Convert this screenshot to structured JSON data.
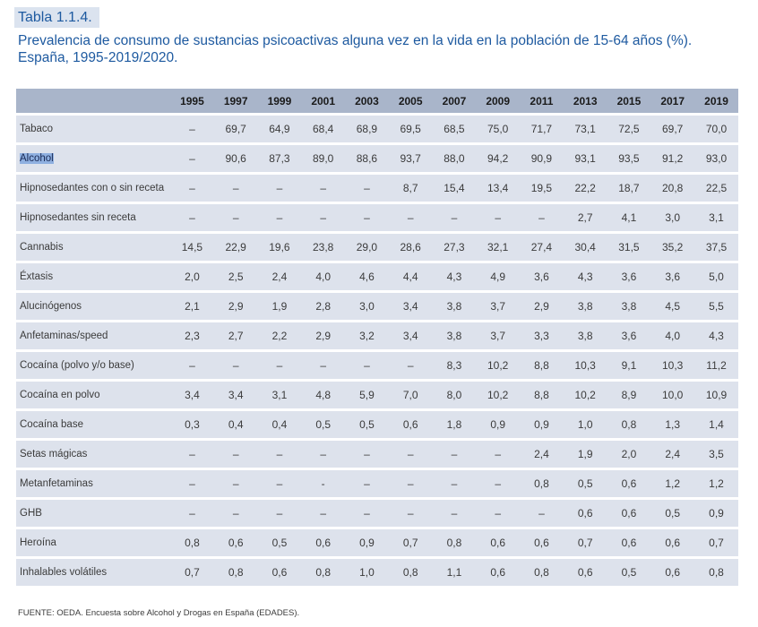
{
  "table_label": "Tabla 1.1.4.",
  "title": "Prevalencia de consumo de sustancias psicoactivas alguna vez en la vida en la población de 15-64 años (%). España, 1995-2019/2020.",
  "header_corner": "",
  "years": [
    "1995",
    "1997",
    "1999",
    "2001",
    "2003",
    "2005",
    "2007",
    "2009",
    "2011",
    "2013",
    "2015",
    "2017",
    "2019"
  ],
  "rows": [
    {
      "label": "Tabaco",
      "values": [
        "–",
        "69,7",
        "64,9",
        "68,4",
        "68,9",
        "69,5",
        "68,5",
        "75,0",
        "71,7",
        "73,1",
        "72,5",
        "69,7",
        "70,0"
      ]
    },
    {
      "label": "Alcohol",
      "highlighted": true,
      "values": [
        "–",
        "90,6",
        "87,3",
        "89,0",
        "88,6",
        "93,7",
        "88,0",
        "94,2",
        "90,9",
        "93,1",
        "93,5",
        "91,2",
        "93,0"
      ]
    },
    {
      "label": "Hipnosedantes con o sin receta",
      "values": [
        "–",
        "–",
        "–",
        "–",
        "–",
        "8,7",
        "15,4",
        "13,4",
        "19,5",
        "22,2",
        "18,7",
        "20,8",
        "22,5"
      ]
    },
    {
      "label": "Hipnosedantes sin receta",
      "values": [
        "–",
        "–",
        "–",
        "–",
        "–",
        "–",
        "–",
        "–",
        "–",
        "2,7",
        "4,1",
        "3,0",
        "3,1"
      ]
    },
    {
      "label": "Cannabis",
      "values": [
        "14,5",
        "22,9",
        "19,6",
        "23,8",
        "29,0",
        "28,6",
        "27,3",
        "32,1",
        "27,4",
        "30,4",
        "31,5",
        "35,2",
        "37,5"
      ]
    },
    {
      "label": "Éxtasis",
      "values": [
        "2,0",
        "2,5",
        "2,4",
        "4,0",
        "4,6",
        "4,4",
        "4,3",
        "4,9",
        "3,6",
        "4,3",
        "3,6",
        "3,6",
        "5,0"
      ]
    },
    {
      "label": "Alucinógenos",
      "values": [
        "2,1",
        "2,9",
        "1,9",
        "2,8",
        "3,0",
        "3,4",
        "3,8",
        "3,7",
        "2,9",
        "3,8",
        "3,8",
        "4,5",
        "5,5"
      ]
    },
    {
      "label": "Anfetaminas/speed",
      "values": [
        "2,3",
        "2,7",
        "2,2",
        "2,9",
        "3,2",
        "3,4",
        "3,8",
        "3,7",
        "3,3",
        "3,8",
        "3,6",
        "4,0",
        "4,3"
      ]
    },
    {
      "label": "Cocaína (polvo y/o base)",
      "values": [
        "–",
        "–",
        "–",
        "–",
        "–",
        "–",
        "8,3",
        "10,2",
        "8,8",
        "10,3",
        "9,1",
        "10,3",
        "11,2"
      ]
    },
    {
      "label": "Cocaína en polvo",
      "values": [
        "3,4",
        "3,4",
        "3,1",
        "4,8",
        "5,9",
        "7,0",
        "8,0",
        "10,2",
        "8,8",
        "10,2",
        "8,9",
        "10,0",
        "10,9"
      ]
    },
    {
      "label": "Cocaína base",
      "values": [
        "0,3",
        "0,4",
        "0,4",
        "0,5",
        "0,5",
        "0,6",
        "1,8",
        "0,9",
        "0,9",
        "1,0",
        "0,8",
        "1,3",
        "1,4"
      ]
    },
    {
      "label": "Setas mágicas",
      "values": [
        "–",
        "–",
        "–",
        "–",
        "–",
        "–",
        "–",
        "–",
        "2,4",
        "1,9",
        "2,0",
        "2,4",
        "3,5"
      ]
    },
    {
      "label": "Metanfetaminas",
      "values": [
        "–",
        "–",
        "–",
        "-",
        "–",
        "–",
        "–",
        "–",
        "0,8",
        "0,5",
        "0,6",
        "1,2",
        "1,2"
      ]
    },
    {
      "label": "GHB",
      "values": [
        "–",
        "–",
        "–",
        "–",
        "–",
        "–",
        "–",
        "–",
        "–",
        "0,6",
        "0,6",
        "0,5",
        "0,9"
      ]
    },
    {
      "label": "Heroína",
      "values": [
        "0,8",
        "0,6",
        "0,5",
        "0,6",
        "0,9",
        "0,7",
        "0,8",
        "0,6",
        "0,6",
        "0,7",
        "0,6",
        "0,6",
        "0,7"
      ]
    },
    {
      "label": "Inhalables volátiles",
      "values": [
        "0,7",
        "0,8",
        "0,6",
        "0,8",
        "1,0",
        "0,8",
        "1,1",
        "0,6",
        "0,8",
        "0,6",
        "0,5",
        "0,6",
        "0,8"
      ]
    }
  ],
  "source": "FUENTE: OEDA. Encuesta sobre Alcohol y Drogas en España (EDADES).",
  "colors": {
    "title": "#1e5aa0",
    "header_bg": "#a9b5ca",
    "row_bg": "#dde2ec",
    "selection": "#8fb0e0"
  }
}
